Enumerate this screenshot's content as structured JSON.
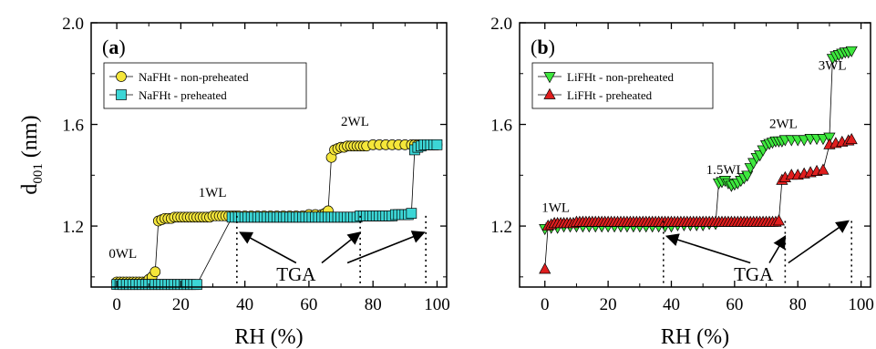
{
  "colors": {
    "yellow": "#f5e63a",
    "cyan": "#3cd6d6",
    "green": "#3ee83e",
    "red": "#e01e1e",
    "axis": "#000000"
  },
  "chart_data": [
    {
      "type": "scatter",
      "panel_label": "(a)",
      "panel_letter": "a",
      "xlabel": "RH (%)",
      "ylabel": "d001 (nm)",
      "ylabel_main": "d",
      "ylabel_sub": "001",
      "ylabel_unit": "(nm)",
      "xlim": [
        -8,
        103
      ],
      "ylim": [
        0.96,
        2.0
      ],
      "x_ticks": [
        0,
        20,
        40,
        60,
        80,
        100
      ],
      "y_ticks": [
        1.2,
        1.6,
        2.0
      ],
      "y_tick_labels": [
        "1.2",
        "1.6",
        "2.0"
      ],
      "legend_position": "top-left",
      "series": [
        {
          "name": "NaFHt - non-preheated",
          "marker": "circle",
          "color_key": "yellow",
          "x": [
            0,
            1,
            2,
            3,
            4,
            5,
            6,
            7,
            8,
            9,
            10,
            11,
            12,
            13,
            14,
            15,
            16,
            17,
            18,
            19,
            20,
            21,
            22,
            23,
            24,
            25,
            26,
            27,
            28,
            29,
            30,
            31,
            32,
            33,
            34,
            35,
            36,
            37,
            38,
            40,
            42,
            44,
            46,
            48,
            50,
            52,
            54,
            56,
            58,
            60,
            62,
            64,
            65,
            66,
            67,
            68,
            69,
            70,
            71,
            72,
            73,
            74,
            75,
            76,
            77,
            78,
            80,
            82,
            84,
            86,
            88,
            90,
            92,
            93,
            94,
            95,
            96,
            97,
            98,
            99,
            100
          ],
          "y": [
            0.98,
            0.98,
            0.98,
            0.98,
            0.98,
            0.98,
            0.98,
            0.98,
            0.98,
            0.98,
            0.99,
            1.0,
            1.02,
            1.22,
            1.225,
            1.23,
            1.23,
            1.23,
            1.235,
            1.235,
            1.235,
            1.235,
            1.235,
            1.235,
            1.235,
            1.235,
            1.235,
            1.235,
            1.235,
            1.235,
            1.24,
            1.24,
            1.24,
            1.24,
            1.24,
            1.24,
            1.24,
            1.24,
            1.24,
            1.24,
            1.24,
            1.24,
            1.24,
            1.24,
            1.24,
            1.24,
            1.24,
            1.24,
            1.24,
            1.245,
            1.245,
            1.245,
            1.25,
            1.26,
            1.47,
            1.5,
            1.505,
            1.51,
            1.51,
            1.515,
            1.515,
            1.515,
            1.515,
            1.515,
            1.515,
            1.515,
            1.52,
            1.52,
            1.52,
            1.52,
            1.52,
            1.52,
            1.52,
            1.52,
            1.52,
            1.52,
            1.52,
            1.52,
            1.52,
            1.52,
            1.52
          ]
        },
        {
          "name": "NaFHt - preheated",
          "marker": "square",
          "color_key": "cyan",
          "x": [
            0,
            1,
            2,
            3,
            4,
            5,
            6,
            7,
            8,
            9,
            10,
            11,
            12,
            13,
            14,
            15,
            16,
            17,
            18,
            19,
            20,
            21,
            22,
            23,
            24,
            25,
            36,
            37,
            38,
            39,
            40,
            41,
            42,
            43,
            44,
            45,
            46,
            47,
            48,
            49,
            50,
            51,
            52,
            53,
            54,
            55,
            56,
            57,
            58,
            59,
            60,
            61,
            62,
            63,
            64,
            65,
            66,
            67,
            68,
            69,
            70,
            71,
            72,
            73,
            74,
            75,
            76,
            77,
            78,
            79,
            80,
            81,
            82,
            83,
            84,
            85,
            86,
            87,
            88,
            89,
            90,
            91,
            92,
            93,
            94,
            95,
            96,
            97,
            98,
            99,
            100
          ],
          "y": [
            0.97,
            0.97,
            0.97,
            0.97,
            0.97,
            0.97,
            0.97,
            0.97,
            0.97,
            0.97,
            0.97,
            0.97,
            0.97,
            0.97,
            0.97,
            0.97,
            0.97,
            0.97,
            0.97,
            0.97,
            0.97,
            0.97,
            0.97,
            0.97,
            0.97,
            0.97,
            1.235,
            1.235,
            1.235,
            1.235,
            1.235,
            1.235,
            1.235,
            1.235,
            1.235,
            1.235,
            1.235,
            1.235,
            1.235,
            1.235,
            1.235,
            1.235,
            1.235,
            1.235,
            1.235,
            1.235,
            1.235,
            1.235,
            1.235,
            1.235,
            1.235,
            1.235,
            1.235,
            1.235,
            1.235,
            1.235,
            1.235,
            1.235,
            1.235,
            1.235,
            1.235,
            1.235,
            1.235,
            1.235,
            1.235,
            1.235,
            1.24,
            1.24,
            1.24,
            1.24,
            1.24,
            1.24,
            1.24,
            1.24,
            1.24,
            1.24,
            1.24,
            1.245,
            1.245,
            1.245,
            1.245,
            1.245,
            1.25,
            1.5,
            1.51,
            1.515,
            1.52,
            1.52,
            1.52,
            1.52,
            1.52
          ]
        }
      ],
      "annotations": [
        {
          "text": "0WL",
          "x": -2.5,
          "y": 1.075
        },
        {
          "text": "1WL",
          "x": 25.5,
          "y": 1.315
        },
        {
          "text": "2WL",
          "x": 70,
          "y": 1.595
        }
      ],
      "tga_label": "TGA",
      "tga_label_pos": {
        "x": 56,
        "y": 0.985
      },
      "tga_lines": [
        37.5,
        76,
        96.5
      ],
      "tga_line_top": 1.24,
      "tga_arrows": [
        {
          "from": [
            56,
            1.055
          ],
          "to": [
            38.5,
            1.175
          ]
        },
        {
          "from": [
            64,
            1.055
          ],
          "to": [
            76,
            1.175
          ]
        },
        {
          "from": [
            72,
            1.055
          ],
          "to": [
            96,
            1.175
          ]
        }
      ]
    },
    {
      "type": "scatter",
      "panel_label": "(b)",
      "panel_letter": "b",
      "xlabel": "RH (%)",
      "ylabel": "",
      "xlim": [
        -8,
        103
      ],
      "ylim": [
        0.96,
        2.0
      ],
      "x_ticks": [
        0,
        20,
        40,
        60,
        80,
        100
      ],
      "y_ticks": [
        1.2,
        1.6,
        2.0
      ],
      "y_tick_labels": [
        "1.2",
        "1.6",
        "2.0"
      ],
      "legend_position": "top-left",
      "series": [
        {
          "name": "LiFHt - non-preheated",
          "marker": "triangle-down",
          "color_key": "green",
          "x": [
            0,
            2,
            4,
            6,
            8,
            10,
            12,
            14,
            16,
            18,
            20,
            22,
            24,
            26,
            28,
            30,
            32,
            34,
            36,
            38,
            40,
            42,
            44,
            46,
            48,
            50,
            52,
            54,
            55,
            56,
            57,
            58,
            59,
            60,
            61,
            62,
            63,
            64,
            65,
            66,
            67,
            68,
            69,
            70,
            71,
            72,
            73,
            74,
            75,
            76,
            78,
            80,
            82,
            84,
            86,
            88,
            90,
            91,
            92,
            93,
            94,
            95,
            96,
            97
          ],
          "y": [
            1.19,
            1.195,
            1.195,
            1.2,
            1.2,
            1.2,
            1.2,
            1.2,
            1.2,
            1.2,
            1.2,
            1.2,
            1.2,
            1.2,
            1.2,
            1.2,
            1.2,
            1.2,
            1.2,
            1.2,
            1.2,
            1.205,
            1.205,
            1.205,
            1.205,
            1.205,
            1.21,
            1.21,
            1.37,
            1.375,
            1.38,
            1.37,
            1.36,
            1.365,
            1.37,
            1.38,
            1.39,
            1.4,
            1.43,
            1.45,
            1.47,
            1.48,
            1.5,
            1.52,
            1.525,
            1.53,
            1.535,
            1.535,
            1.535,
            1.54,
            1.54,
            1.54,
            1.54,
            1.545,
            1.545,
            1.545,
            1.55,
            1.86,
            1.87,
            1.875,
            1.88,
            1.885,
            1.885,
            1.89
          ]
        },
        {
          "name": "LiFHt - preheated",
          "marker": "triangle-up",
          "color_key": "red",
          "x": [
            0,
            1,
            2,
            3,
            4,
            5,
            6,
            7,
            8,
            9,
            10,
            11,
            12,
            13,
            14,
            15,
            16,
            17,
            18,
            19,
            20,
            21,
            22,
            23,
            24,
            25,
            26,
            27,
            28,
            29,
            30,
            31,
            32,
            33,
            34,
            35,
            36,
            37,
            38,
            39,
            40,
            41,
            42,
            43,
            44,
            45,
            46,
            47,
            48,
            49,
            50,
            51,
            52,
            53,
            54,
            55,
            56,
            57,
            58,
            59,
            60,
            61,
            62,
            63,
            64,
            65,
            66,
            67,
            68,
            69,
            70,
            71,
            72,
            73,
            74,
            75,
            76,
            78,
            80,
            82,
            84,
            86,
            88,
            90,
            92,
            94,
            96,
            97
          ],
          "y": [
            1.03,
            1.2,
            1.205,
            1.21,
            1.21,
            1.21,
            1.21,
            1.21,
            1.21,
            1.21,
            1.215,
            1.215,
            1.215,
            1.215,
            1.215,
            1.215,
            1.215,
            1.215,
            1.215,
            1.215,
            1.215,
            1.215,
            1.215,
            1.215,
            1.215,
            1.215,
            1.215,
            1.215,
            1.215,
            1.215,
            1.215,
            1.215,
            1.215,
            1.215,
            1.215,
            1.215,
            1.215,
            1.215,
            1.215,
            1.215,
            1.215,
            1.215,
            1.215,
            1.215,
            1.215,
            1.215,
            1.215,
            1.215,
            1.215,
            1.215,
            1.215,
            1.215,
            1.215,
            1.215,
            1.215,
            1.215,
            1.215,
            1.215,
            1.215,
            1.215,
            1.215,
            1.215,
            1.215,
            1.215,
            1.215,
            1.215,
            1.215,
            1.215,
            1.215,
            1.215,
            1.215,
            1.215,
            1.215,
            1.215,
            1.22,
            1.38,
            1.39,
            1.4,
            1.4,
            1.405,
            1.41,
            1.415,
            1.42,
            1.52,
            1.525,
            1.53,
            1.535,
            1.54
          ]
        }
      ],
      "annotations": [
        {
          "text": "1WL",
          "x": -1,
          "y": 1.255
        },
        {
          "text": "1.5WL",
          "x": 51,
          "y": 1.405
        },
        {
          "text": "2WL",
          "x": 71,
          "y": 1.585
        },
        {
          "text": "3WL",
          "x": 86.5,
          "y": 1.815
        }
      ],
      "tga_label": "TGA",
      "tga_label_pos": {
        "x": 66,
        "y": 0.985
      },
      "tga_lines": [
        37.5,
        76,
        97
      ],
      "tga_line_top": 1.22,
      "tga_arrows": [
        {
          "from": [
            65,
            1.055
          ],
          "to": [
            38.5,
            1.16
          ]
        },
        {
          "from": [
            71,
            1.055
          ],
          "to": [
            76,
            1.16
          ]
        },
        {
          "from": [
            77,
            1.055
          ],
          "to": [
            96,
            1.22
          ]
        }
      ]
    }
  ]
}
